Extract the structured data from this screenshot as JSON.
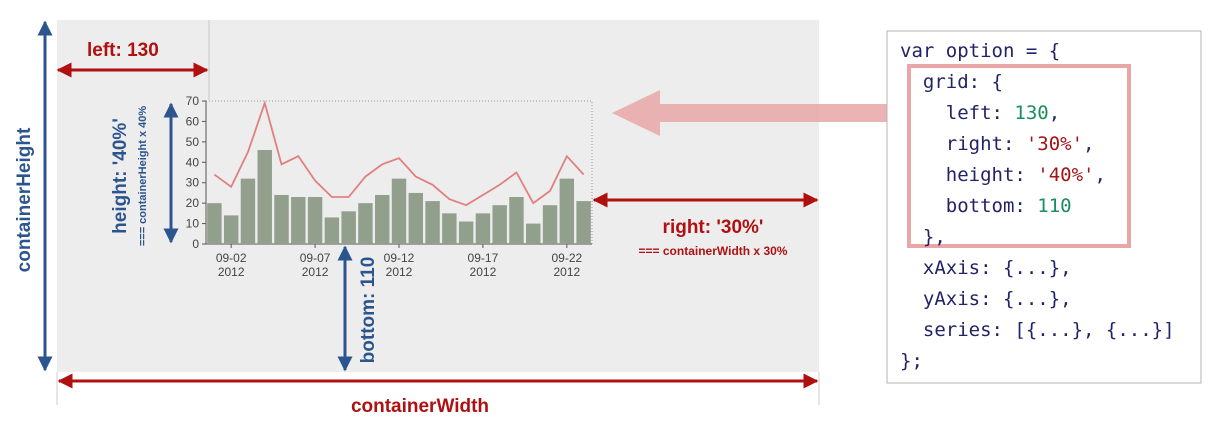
{
  "colors": {
    "container_bg": "#ededed",
    "bar": "#919f8c",
    "line": "#e08080",
    "red_arrow": "#b01010",
    "blue_arrow": "#2c5590",
    "highlight": "#e8a6a6",
    "code_default": "#222266",
    "code_number": "#1a8f5c",
    "code_string": "#a31515"
  },
  "labels": {
    "left": "left: 130",
    "right": "right: '30%'",
    "right_sub": "=== containerWidth x 30%",
    "height": "height: '40%'",
    "height_sub": "=== containerHeight x 40%",
    "bottom": "bottom: 110",
    "container_height": "containerHeight",
    "container_width": "containerWidth"
  },
  "chart_data": {
    "type": "bar",
    "ylim": [
      0,
      70
    ],
    "yticks": [
      "0",
      "10",
      "20",
      "30",
      "40",
      "50",
      "60",
      "70"
    ],
    "xtick_labels": [
      {
        "date": "09-02",
        "year": "2012",
        "index": 1
      },
      {
        "date": "09-07",
        "year": "2012",
        "index": 6
      },
      {
        "date": "09-12",
        "year": "2012",
        "index": 11
      },
      {
        "date": "09-17",
        "year": "2012",
        "index": 16
      },
      {
        "date": "09-22",
        "year": "2012",
        "index": 21
      }
    ],
    "bars": [
      20,
      14,
      32,
      46,
      24,
      23,
      23,
      13,
      16,
      20,
      24,
      32,
      25,
      21,
      15,
      11,
      15,
      19,
      23,
      10,
      19,
      32,
      21
    ],
    "line": [
      34,
      28,
      45,
      69,
      39,
      43,
      31,
      23,
      23,
      33,
      39,
      42,
      33,
      29,
      22,
      19,
      24,
      29,
      35,
      20,
      26,
      43,
      34
    ]
  },
  "code": {
    "lines": [
      [
        {
          "t": "var option = {",
          "k": "p"
        }
      ],
      [
        {
          "t": "  grid: {",
          "k": "p"
        }
      ],
      [
        {
          "t": "    left: ",
          "k": "p"
        },
        {
          "t": "130",
          "k": "n"
        },
        {
          "t": ",",
          "k": "p"
        }
      ],
      [
        {
          "t": "    right: ",
          "k": "p"
        },
        {
          "t": "'30%'",
          "k": "s"
        },
        {
          "t": ",",
          "k": "p"
        }
      ],
      [
        {
          "t": "    height: ",
          "k": "p"
        },
        {
          "t": "'40%'",
          "k": "s"
        },
        {
          "t": ",",
          "k": "p"
        }
      ],
      [
        {
          "t": "    bottom: ",
          "k": "p"
        },
        {
          "t": "110",
          "k": "n"
        }
      ],
      [
        {
          "t": "  },",
          "k": "p"
        }
      ],
      [
        {
          "t": "  xAxis: {...},",
          "k": "p"
        }
      ],
      [
        {
          "t": "  yAxis: {...},",
          "k": "p"
        }
      ],
      [
        {
          "t": "  series: [{...}, {...}]",
          "k": "p"
        }
      ],
      [
        {
          "t": "};",
          "k": "p"
        }
      ]
    ]
  }
}
